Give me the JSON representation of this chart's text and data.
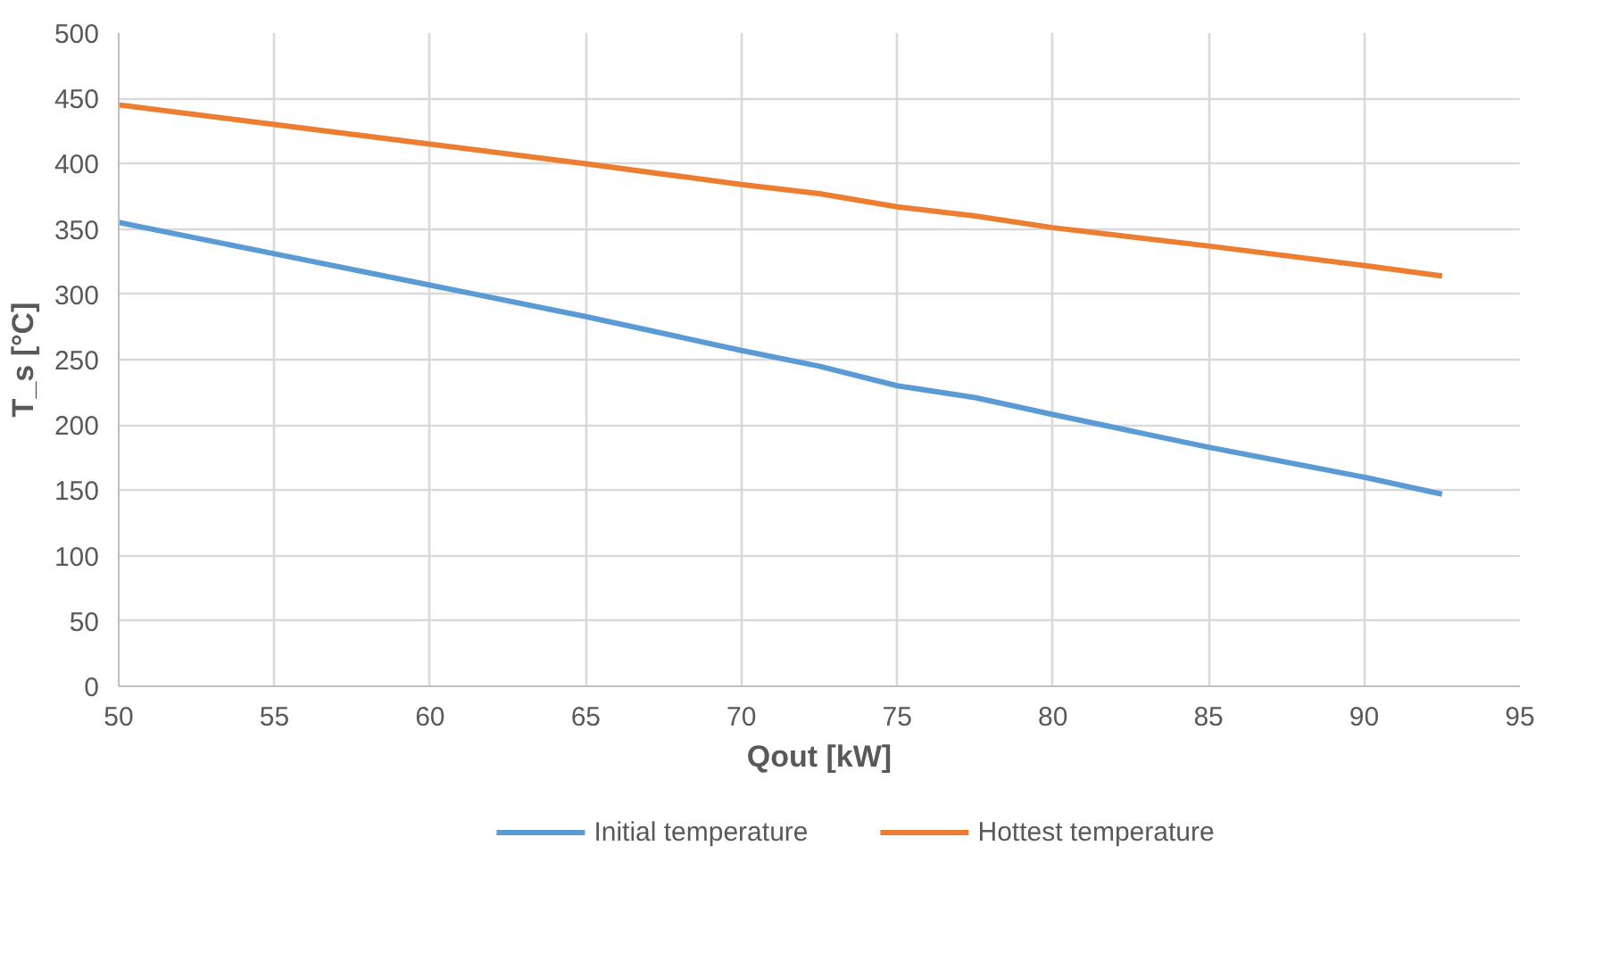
{
  "chart_data": {
    "type": "line",
    "xlabel": "Qout [kW]",
    "ylabel": "T_s [°C]",
    "x": [
      50,
      55,
      60,
      65,
      70,
      72.5,
      75,
      77.5,
      80,
      85,
      90,
      92.5
    ],
    "series": [
      {
        "name": "Initial temperature",
        "color": "#5b9bd5",
        "values": [
          355,
          331,
          307,
          283,
          257,
          245,
          230,
          221,
          208,
          183,
          160,
          147
        ]
      },
      {
        "name": "Hottest temperature",
        "color": "#ed7d31",
        "values": [
          445,
          430,
          415,
          400,
          384,
          377,
          367,
          360,
          351,
          337,
          322,
          314
        ]
      }
    ],
    "xlim": [
      50,
      95
    ],
    "xticks": [
      50,
      55,
      60,
      65,
      70,
      75,
      80,
      85,
      90,
      95
    ],
    "ylim": [
      0,
      500
    ],
    "yticks": [
      0,
      50,
      100,
      150,
      200,
      250,
      300,
      350,
      400,
      450,
      500
    ],
    "grid": true,
    "legend": "bottom",
    "marker": "none",
    "line_style": "solid"
  }
}
